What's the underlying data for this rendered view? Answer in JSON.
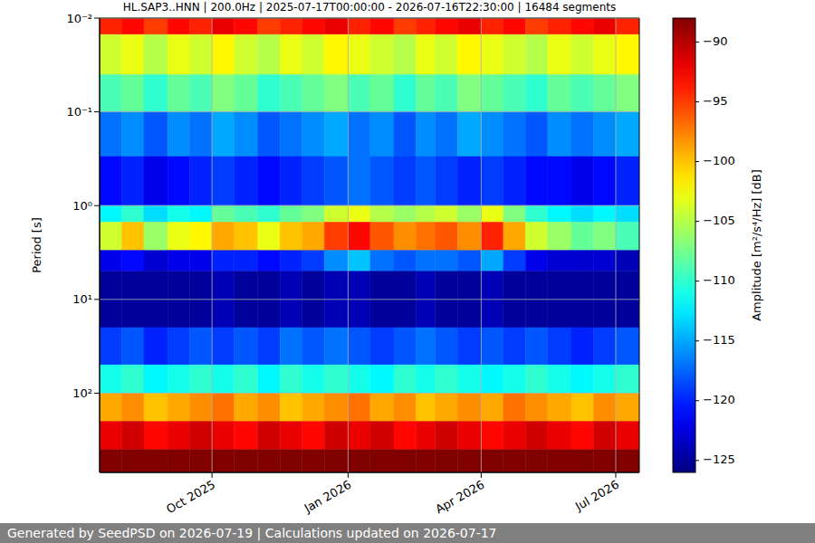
{
  "chart_data": {
    "type": "heatmap",
    "title": "HL.SAP3..HNN | 200.0Hz | 2025-07-17T00:00:00 - 2026-07-16T22:30:00 | 16484 segments",
    "ylabel": "Period [s]",
    "log": "y",
    "grid": true,
    "xlim": [
      "2025-07-17",
      "2026-07-16T22:30:00"
    ],
    "xticks": [
      {
        "value": "2025-10-01",
        "label": "Oct 2025"
      },
      {
        "value": "2026-01-01",
        "label": "Jan 2026"
      },
      {
        "value": "2026-04-01",
        "label": "Apr 2026"
      },
      {
        "value": "2026-07-01",
        "label": "Jul 2026"
      }
    ],
    "ylim": [
      0.01,
      700
    ],
    "yticks": [
      {
        "value": 0.01,
        "label": "10⁻²"
      },
      {
        "value": 0.1,
        "label": "10⁻¹"
      },
      {
        "value": 1,
        "label": "10⁰"
      },
      {
        "value": 10,
        "label": "10¹"
      },
      {
        "value": 100,
        "label": "10²"
      }
    ],
    "x_bins": [
      "2025-07-17",
      "2025-08-01",
      "2025-08-16",
      "2025-09-01",
      "2025-09-16",
      "2025-10-01",
      "2025-10-16",
      "2025-11-01",
      "2025-11-16",
      "2025-12-01",
      "2025-12-16",
      "2026-01-01",
      "2026-01-16",
      "2026-02-01",
      "2026-02-16",
      "2026-03-01",
      "2026-03-16",
      "2026-04-01",
      "2026-04-16",
      "2026-05-01",
      "2026-05-16",
      "2026-06-01",
      "2026-06-16",
      "2026-07-01",
      "2026-07-16T22:30:00"
    ],
    "y_bins": [
      0.01,
      0.015,
      0.04,
      0.1,
      0.3,
      1,
      1.5,
      3,
      5,
      20,
      50,
      100,
      200,
      400,
      700
    ],
    "cells": [
      [
        -94,
        -93,
        -95,
        -93,
        -94,
        -92,
        -93,
        -95,
        -94,
        -93,
        -92,
        -94,
        -93,
        -95,
        -94,
        -93,
        -92,
        -94,
        -93,
        -95,
        -94,
        -93,
        -92,
        -94
      ],
      [
        -104,
        -103,
        -105,
        -103,
        -104,
        -102,
        -104,
        -105,
        -103,
        -104,
        -102,
        -103,
        -104,
        -105,
        -103,
        -104,
        -102,
        -103,
        -104,
        -105,
        -103,
        -104,
        -103,
        -102
      ],
      [
        -109,
        -108,
        -110,
        -108,
        -109,
        -107,
        -108,
        -110,
        -109,
        -108,
        -107,
        -109,
        -108,
        -110,
        -108,
        -109,
        -107,
        -108,
        -109,
        -110,
        -108,
        -109,
        -108,
        -107
      ],
      [
        -117,
        -116,
        -118,
        -116,
        -117,
        -115,
        -116,
        -118,
        -117,
        -116,
        -115,
        -117,
        -116,
        -118,
        -116,
        -117,
        -115,
        -116,
        -117,
        -118,
        -116,
        -117,
        -116,
        -115
      ],
      [
        -121,
        -120,
        -122,
        -121,
        -120,
        -119,
        -120,
        -121,
        -120,
        -119,
        -118,
        -117,
        -118,
        -119,
        -118,
        -119,
        -120,
        -119,
        -120,
        -121,
        -121,
        -122,
        -121,
        -120
      ],
      [
        -112,
        -110,
        -113,
        -111,
        -112,
        -108,
        -109,
        -110,
        -108,
        -107,
        -104,
        -103,
        -105,
        -106,
        -105,
        -104,
        -106,
        -103,
        -107,
        -110,
        -112,
        -113,
        -112,
        -113
      ],
      [
        -104,
        -100,
        -106,
        -103,
        -102,
        -99,
        -100,
        -103,
        -100,
        -99,
        -95,
        -93,
        -96,
        -98,
        -97,
        -96,
        -98,
        -94,
        -99,
        -104,
        -106,
        -108,
        -107,
        -109
      ],
      [
        -122,
        -121,
        -123,
        -122,
        -122,
        -120,
        -120,
        -121,
        -120,
        -119,
        -116,
        -114,
        -117,
        -118,
        -117,
        -117,
        -118,
        -115,
        -119,
        -122,
        -123,
        -123,
        -123,
        -124
      ],
      [
        -125,
        -125,
        -125,
        -125,
        -125,
        -124,
        -125,
        -125,
        -124,
        -125,
        -124,
        -124,
        -125,
        -125,
        -124,
        -125,
        -125,
        -124,
        -125,
        -125,
        -125,
        -125,
        -125,
        -125
      ],
      [
        -119,
        -118,
        -120,
        -119,
        -118,
        -119,
        -118,
        -119,
        -117,
        -118,
        -117,
        -118,
        -119,
        -118,
        -117,
        -118,
        -119,
        -118,
        -119,
        -118,
        -119,
        -120,
        -119,
        -118
      ],
      [
        -111,
        -110,
        -112,
        -111,
        -110,
        -111,
        -110,
        -112,
        -110,
        -111,
        -110,
        -111,
        -112,
        -110,
        -111,
        -110,
        -111,
        -112,
        -111,
        -110,
        -111,
        -112,
        -111,
        -110
      ],
      [
        -99,
        -98,
        -100,
        -99,
        -98,
        -97,
        -99,
        -98,
        -100,
        -99,
        -98,
        -97,
        -99,
        -98,
        -100,
        -99,
        -98,
        -99,
        -97,
        -98,
        -99,
        -100,
        -98,
        -99
      ],
      [
        -92,
        -91,
        -93,
        -92,
        -91,
        -92,
        -93,
        -91,
        -92,
        -93,
        -91,
        -92,
        -91,
        -93,
        -92,
        -91,
        -92,
        -93,
        -92,
        -91,
        -92,
        -93,
        -91,
        -92
      ],
      [
        -88,
        -88,
        -88,
        -88,
        -88,
        -88,
        -88,
        -88,
        -88,
        -88,
        -88,
        -88,
        -88,
        -88,
        -88,
        -88,
        -88,
        -88,
        -88,
        -88,
        -88,
        -88,
        -88,
        -88
      ]
    ],
    "colorbar": {
      "range": [
        -126,
        -88
      ],
      "ticks": [
        -125,
        -120,
        -115,
        -110,
        -105,
        -100,
        -95,
        -90
      ],
      "label": "Amplitude [m²/s⁴/Hz] [dB]"
    },
    "footer": "Generated by SeedPSD on 2026-07-19 | Calculations updated on 2026-07-17"
  }
}
